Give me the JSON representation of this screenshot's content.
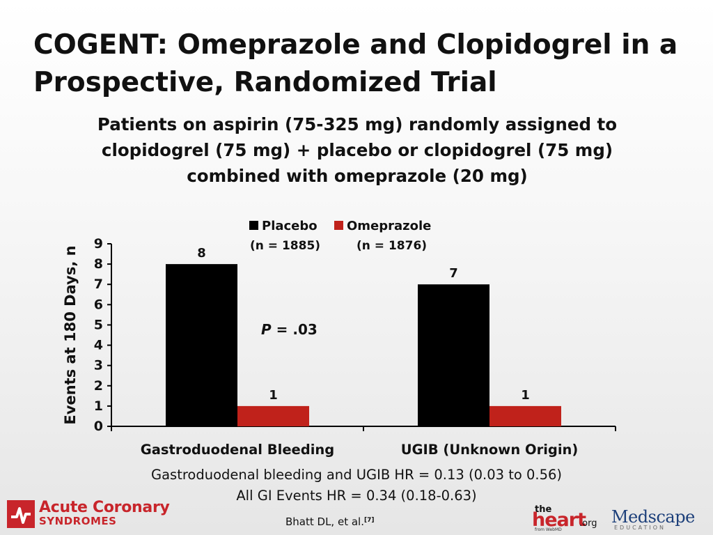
{
  "title": {
    "line1": "COGENT: Omeprazole and Clopidogrel in a",
    "line2": "Prospective, Randomized Trial"
  },
  "subtitle": {
    "line1": "Patients on aspirin (75-325 mg) randomly assigned to",
    "line2": "clopidogrel (75 mg) + placebo or clopidogrel (75 mg)",
    "line3": "combined with omeprazole (20 mg)"
  },
  "legend": {
    "placebo_label": "Placebo",
    "placebo_n": "(n = 1885)",
    "omeprazole_label": "Omeprazole",
    "omeprazole_n": "(n = 1876)"
  },
  "chart_data": {
    "type": "bar",
    "categories": [
      "Gastroduodenal Bleeding",
      "UGIB (Unknown Origin)"
    ],
    "series": [
      {
        "name": "Placebo",
        "values": [
          8,
          7
        ],
        "color": "#000000"
      },
      {
        "name": "Omeprazole",
        "values": [
          1,
          1
        ],
        "color": "#c0221b"
      }
    ],
    "ylabel": "Events at 180 Days, n",
    "ylim": [
      0,
      9
    ],
    "yticks": [
      0,
      1,
      2,
      3,
      4,
      5,
      6,
      7,
      8,
      9
    ],
    "annotation": {
      "prefix": "P",
      "text": " = .03"
    },
    "grid": false,
    "legend_position": "top-center"
  },
  "footnotes": {
    "line1": "Gastroduodenal bleeding and UGIB HR = 0.13 (0.03 to 0.56)",
    "line2": "All GI Events HR = 0.34 (0.18-0.63)"
  },
  "citation": {
    "text": "Bhatt DL, et al.",
    "ref": "[7]"
  },
  "logos": {
    "acs_line1": "Acute Coronary",
    "acs_line2": "SYNDROMES",
    "heart_the": "the",
    "heart_word": "heart",
    "heart_org": ".org",
    "heart_from": "from WebMD",
    "medscape_word": "Medscape",
    "medscape_sub": "EDUCATION"
  },
  "colors": {
    "brand_red": "#c8252b",
    "placebo": "#000000",
    "omeprazole": "#c0221b",
    "medscape_blue": "#1c3f7a"
  }
}
